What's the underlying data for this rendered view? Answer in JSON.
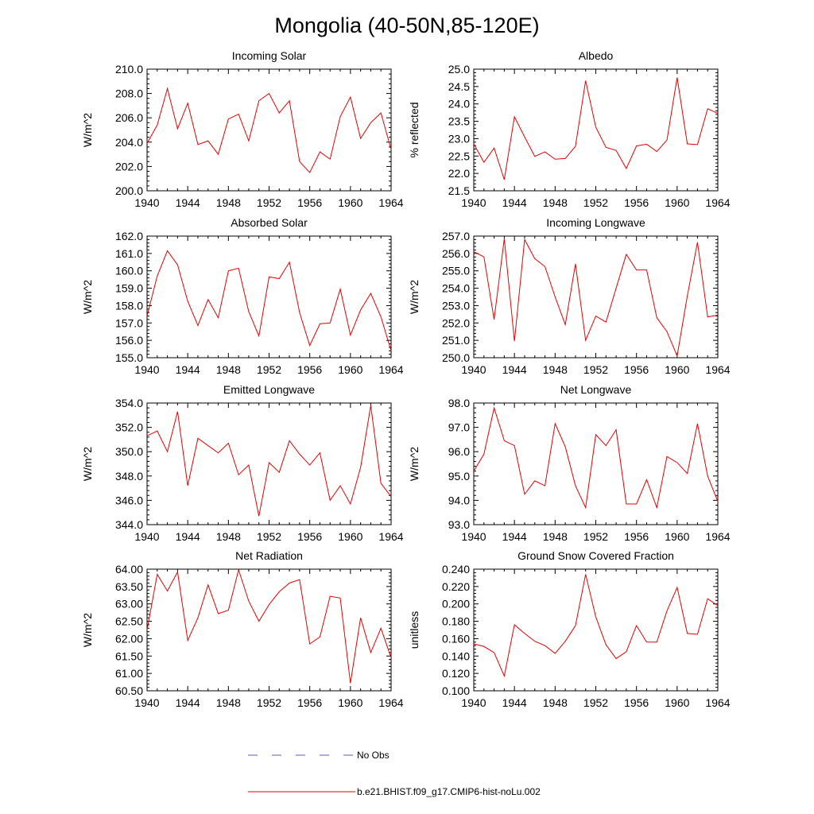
{
  "title": "Mongolia (40-50N,85-120E)",
  "legend": [
    {
      "label": "No Obs",
      "color": "#5a5ac8",
      "dashed": true
    },
    {
      "label": "b.e21.BHIST.f09_g17.CMIP6-hist-noLu.002",
      "color": "#e60000",
      "dashed": false
    }
  ],
  "chart_data": [
    {
      "type": "line",
      "title": "Incoming Solar",
      "ylabel": "W/m^2",
      "xlim": [
        1940,
        1964
      ],
      "ylim": [
        200.0,
        210.0
      ],
      "xticks": [
        1940,
        1944,
        1948,
        1952,
        1956,
        1960,
        1964
      ],
      "yticks": [
        200.0,
        202.0,
        204.0,
        206.0,
        208.0,
        210.0
      ],
      "ydecimals": 1,
      "series": [
        {
          "name": "b.e21.BHIST.f09_g17.CMIP6-hist-noLu.002",
          "color": "#e60000",
          "x": [
            1940,
            1941,
            1942,
            1943,
            1944,
            1945,
            1946,
            1947,
            1948,
            1949,
            1950,
            1951,
            1952,
            1953,
            1954,
            1955,
            1956,
            1957,
            1958,
            1959,
            1960,
            1961,
            1962,
            1963,
            1964
          ],
          "y": [
            203.9,
            205.4,
            208.4,
            205.1,
            207.2,
            203.8,
            204.1,
            203.0,
            205.9,
            206.3,
            204.1,
            207.4,
            208.0,
            206.4,
            207.4,
            202.4,
            201.5,
            203.2,
            202.6,
            206.1,
            207.7,
            204.3,
            205.6,
            206.4,
            203.4
          ]
        }
      ]
    },
    {
      "type": "line",
      "title": "Albedo",
      "ylabel": "% reflected",
      "xlim": [
        1940,
        1964
      ],
      "ylim": [
        21.5,
        25.0
      ],
      "xticks": [
        1940,
        1944,
        1948,
        1952,
        1956,
        1960,
        1964
      ],
      "yticks": [
        21.5,
        22.0,
        22.5,
        23.0,
        23.5,
        24.0,
        24.5,
        25.0
      ],
      "ydecimals": 1,
      "series": [
        {
          "name": "b.e21.BHIST.f09_g17.CMIP6-hist-noLu.002",
          "color": "#e60000",
          "x": [
            1940,
            1941,
            1942,
            1943,
            1944,
            1945,
            1946,
            1947,
            1948,
            1949,
            1950,
            1951,
            1952,
            1953,
            1954,
            1955,
            1956,
            1957,
            1958,
            1959,
            1960,
            1961,
            1962,
            1963,
            1964
          ],
          "y": [
            22.85,
            22.32,
            22.73,
            21.82,
            23.63,
            23.05,
            22.49,
            22.62,
            22.41,
            22.43,
            22.78,
            24.67,
            23.33,
            22.75,
            22.66,
            22.14,
            22.79,
            22.84,
            22.63,
            22.96,
            24.76,
            22.85,
            22.83,
            23.86,
            23.73
          ]
        }
      ]
    },
    {
      "type": "line",
      "title": "Absorbed Solar",
      "ylabel": "W/m^2",
      "xlim": [
        1940,
        1964
      ],
      "ylim": [
        155.0,
        162.0
      ],
      "xticks": [
        1940,
        1944,
        1948,
        1952,
        1956,
        1960,
        1964
      ],
      "yticks": [
        155.0,
        156.0,
        157.0,
        158.0,
        159.0,
        160.0,
        161.0,
        162.0
      ],
      "ydecimals": 1,
      "series": [
        {
          "name": "b.e21.BHIST.f09_g17.CMIP6-hist-noLu.002",
          "color": "#e60000",
          "x": [
            1940,
            1941,
            1942,
            1943,
            1944,
            1945,
            1946,
            1947,
            1948,
            1949,
            1950,
            1951,
            1952,
            1953,
            1954,
            1955,
            1956,
            1957,
            1958,
            1959,
            1960,
            1961,
            1962,
            1963,
            1964
          ],
          "y": [
            157.4,
            159.7,
            161.15,
            160.35,
            158.25,
            156.85,
            158.35,
            157.3,
            160.0,
            160.15,
            157.65,
            156.25,
            159.65,
            159.55,
            160.5,
            157.6,
            155.7,
            156.95,
            157.0,
            158.95,
            156.3,
            157.75,
            158.7,
            157.35,
            155.4
          ]
        }
      ]
    },
    {
      "type": "line",
      "title": "Incoming Longwave",
      "ylabel": "W/m^2",
      "xlim": [
        1940,
        1964
      ],
      "ylim": [
        250.0,
        257.0
      ],
      "xticks": [
        1940,
        1944,
        1948,
        1952,
        1956,
        1960,
        1964
      ],
      "yticks": [
        250.0,
        251.0,
        252.0,
        253.0,
        254.0,
        255.0,
        256.0,
        257.0
      ],
      "ydecimals": 1,
      "series": [
        {
          "name": "b.e21.BHIST.f09_g17.CMIP6-hist-noLu.002",
          "color": "#e60000",
          "x": [
            1940,
            1941,
            1942,
            1943,
            1944,
            1945,
            1946,
            1947,
            1948,
            1949,
            1950,
            1951,
            1952,
            1953,
            1954,
            1955,
            1956,
            1957,
            1958,
            1959,
            1960,
            1961,
            1962,
            1963,
            1964
          ],
          "y": [
            256.1,
            255.8,
            252.2,
            256.85,
            250.95,
            256.8,
            255.7,
            255.25,
            253.5,
            251.9,
            255.4,
            251.0,
            252.4,
            252.05,
            254.0,
            255.95,
            255.05,
            255.05,
            252.3,
            251.5,
            250.1,
            253.55,
            256.65,
            252.35,
            252.45
          ]
        }
      ]
    },
    {
      "type": "line",
      "title": "Emitted Longwave",
      "ylabel": "W/m^2",
      "xlim": [
        1940,
        1964
      ],
      "ylim": [
        344.0,
        354.0
      ],
      "xticks": [
        1940,
        1944,
        1948,
        1952,
        1956,
        1960,
        1964
      ],
      "yticks": [
        344.0,
        346.0,
        348.0,
        350.0,
        352.0,
        354.0
      ],
      "ydecimals": 1,
      "series": [
        {
          "name": "b.e21.BHIST.f09_g17.CMIP6-hist-noLu.002",
          "color": "#e60000",
          "x": [
            1940,
            1941,
            1942,
            1943,
            1944,
            1945,
            1946,
            1947,
            1948,
            1949,
            1950,
            1951,
            1952,
            1953,
            1954,
            1955,
            1956,
            1957,
            1958,
            1959,
            1960,
            1961,
            1962,
            1963,
            1964
          ],
          "y": [
            351.3,
            351.7,
            350.0,
            353.3,
            347.2,
            351.1,
            350.5,
            349.9,
            350.7,
            348.1,
            348.9,
            344.7,
            349.1,
            348.3,
            350.9,
            349.8,
            348.9,
            349.9,
            346.0,
            347.2,
            345.7,
            348.7,
            353.8,
            347.4,
            346.3
          ]
        }
      ]
    },
    {
      "type": "line",
      "title": "Net Longwave",
      "ylabel": "W/m^2",
      "xlim": [
        1940,
        1964
      ],
      "ylim": [
        93.0,
        98.0
      ],
      "xticks": [
        1940,
        1944,
        1948,
        1952,
        1956,
        1960,
        1964
      ],
      "yticks": [
        93.0,
        94.0,
        95.0,
        96.0,
        97.0,
        98.0
      ],
      "ydecimals": 1,
      "series": [
        {
          "name": "b.e21.BHIST.f09_g17.CMIP6-hist-noLu.002",
          "color": "#e60000",
          "x": [
            1940,
            1941,
            1942,
            1943,
            1944,
            1945,
            1946,
            1947,
            1948,
            1949,
            1950,
            1951,
            1952,
            1953,
            1954,
            1955,
            1956,
            1957,
            1958,
            1959,
            1960,
            1961,
            1962,
            1963,
            1964
          ],
          "y": [
            95.2,
            95.9,
            97.8,
            96.45,
            96.25,
            94.25,
            94.8,
            94.6,
            97.15,
            96.2,
            94.6,
            93.7,
            96.7,
            96.25,
            96.9,
            93.85,
            93.85,
            94.85,
            93.7,
            95.8,
            95.55,
            95.1,
            97.15,
            95.0,
            93.95
          ]
        }
      ]
    },
    {
      "type": "line",
      "title": "Net Radiation",
      "ylabel": "W/m^2",
      "xlim": [
        1940,
        1964
      ],
      "ylim": [
        60.5,
        64.0
      ],
      "xticks": [
        1940,
        1944,
        1948,
        1952,
        1956,
        1960,
        1964
      ],
      "yticks": [
        60.5,
        61.0,
        61.5,
        62.0,
        62.5,
        63.0,
        63.5,
        64.0
      ],
      "ydecimals": 2,
      "series": [
        {
          "name": "b.e21.BHIST.f09_g17.CMIP6-hist-noLu.002",
          "color": "#e60000",
          "x": [
            1940,
            1941,
            1942,
            1943,
            1944,
            1945,
            1946,
            1947,
            1948,
            1949,
            1950,
            1951,
            1952,
            1953,
            1954,
            1955,
            1956,
            1957,
            1958,
            1959,
            1960,
            1961,
            1962,
            1963,
            1964
          ],
          "y": [
            62.25,
            63.85,
            63.37,
            63.92,
            61.95,
            62.6,
            63.55,
            62.72,
            62.82,
            63.98,
            63.08,
            62.5,
            62.98,
            63.35,
            63.6,
            63.7,
            61.85,
            62.05,
            63.22,
            63.17,
            60.72,
            62.6,
            61.6,
            62.3,
            61.45
          ]
        }
      ]
    },
    {
      "type": "line",
      "title": "Ground Snow Covered Fraction",
      "ylabel": "unitless",
      "xlim": [
        1940,
        1964
      ],
      "ylim": [
        0.1,
        0.24
      ],
      "xticks": [
        1940,
        1944,
        1948,
        1952,
        1956,
        1960,
        1964
      ],
      "yticks": [
        0.1,
        0.12,
        0.14,
        0.16,
        0.18,
        0.2,
        0.22,
        0.24
      ],
      "ydecimals": 3,
      "series": [
        {
          "name": "b.e21.BHIST.f09_g17.CMIP6-hist-noLu.002",
          "color": "#e60000",
          "x": [
            1940,
            1941,
            1942,
            1943,
            1944,
            1945,
            1946,
            1947,
            1948,
            1949,
            1950,
            1951,
            1952,
            1953,
            1954,
            1955,
            1956,
            1957,
            1958,
            1959,
            1960,
            1961,
            1962,
            1963,
            1964
          ],
          "y": [
            0.154,
            0.151,
            0.144,
            0.117,
            0.176,
            0.166,
            0.157,
            0.152,
            0.143,
            0.157,
            0.175,
            0.234,
            0.185,
            0.153,
            0.137,
            0.145,
            0.175,
            0.156,
            0.156,
            0.192,
            0.219,
            0.166,
            0.165,
            0.206,
            0.198
          ]
        }
      ]
    }
  ]
}
